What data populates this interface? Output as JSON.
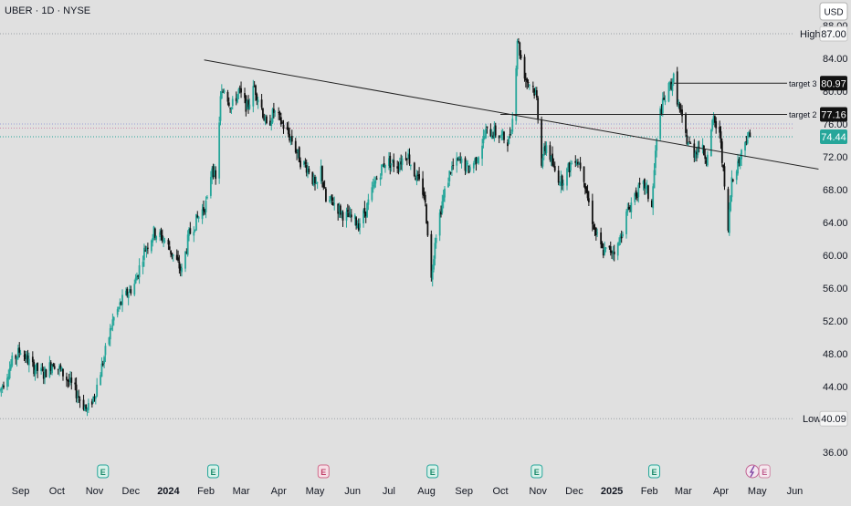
{
  "header": {
    "symbol": "UBER · 1D · NYSE",
    "currency": "USD"
  },
  "chart_data": {
    "type": "candlestick",
    "title": "UBER · 1D · NYSE",
    "ylim": [
      35,
      89
    ],
    "y_ticks": [
      36,
      40,
      44,
      48,
      52,
      56,
      60,
      64,
      68,
      72,
      76,
      80,
      84,
      88
    ],
    "x_ticks": [
      {
        "label": "Sep",
        "date": "2023-09-01",
        "bold": false
      },
      {
        "label": "Oct",
        "date": "2023-10-01",
        "bold": false
      },
      {
        "label": "Nov",
        "date": "2023-11-01",
        "bold": false
      },
      {
        "label": "Dec",
        "date": "2023-12-01",
        "bold": false
      },
      {
        "label": "2024",
        "date": "2024-01-01",
        "bold": true
      },
      {
        "label": "Feb",
        "date": "2024-02-01",
        "bold": false
      },
      {
        "label": "Mar",
        "date": "2024-03-01",
        "bold": false
      },
      {
        "label": "Apr",
        "date": "2024-04-01",
        "bold": false
      },
      {
        "label": "May",
        "date": "2024-05-01",
        "bold": false
      },
      {
        "label": "Jun",
        "date": "2024-06-01",
        "bold": false
      },
      {
        "label": "Jul",
        "date": "2024-07-01",
        "bold": false
      },
      {
        "label": "Aug",
        "date": "2024-08-01",
        "bold": false
      },
      {
        "label": "Sep",
        "date": "2024-09-01",
        "bold": false
      },
      {
        "label": "Oct",
        "date": "2024-10-01",
        "bold": false
      },
      {
        "label": "Nov",
        "date": "2024-11-01",
        "bold": false
      },
      {
        "label": "Dec",
        "date": "2024-12-01",
        "bold": false
      },
      {
        "label": "2025",
        "date": "2025-01-01",
        "bold": true
      },
      {
        "label": "Feb",
        "date": "2025-02-01",
        "bold": false
      },
      {
        "label": "Mar",
        "date": "2025-03-01",
        "bold": false
      },
      {
        "label": "Apr",
        "date": "2025-04-01",
        "bold": false
      },
      {
        "label": "May",
        "date": "2025-05-01",
        "bold": false
      },
      {
        "label": "Jun",
        "date": "2025-06-01",
        "bold": false
      }
    ],
    "price_path": [
      [
        "2023-08-15",
        43.5
      ],
      [
        "2023-08-25",
        47.0
      ],
      [
        "2023-09-01",
        48.5
      ],
      [
        "2023-09-10",
        46.5
      ],
      [
        "2023-09-20",
        45.5
      ],
      [
        "2023-09-28",
        47.0
      ],
      [
        "2023-10-08",
        45.2
      ],
      [
        "2023-10-16",
        43.5
      ],
      [
        "2023-10-26",
        41.0
      ],
      [
        "2023-11-01",
        43.0
      ],
      [
        "2023-11-08",
        47.0
      ],
      [
        "2023-11-16",
        52.0
      ],
      [
        "2023-11-24",
        54.5
      ],
      [
        "2023-12-04",
        56.5
      ],
      [
        "2023-12-12",
        60.5
      ],
      [
        "2023-12-20",
        62.8
      ],
      [
        "2023-12-28",
        62.0
      ],
      [
        "2024-01-05",
        60.0
      ],
      [
        "2024-01-12",
        58.0
      ],
      [
        "2024-01-18",
        62.5
      ],
      [
        "2024-01-25",
        64.5
      ],
      [
        "2024-02-02",
        66.5
      ],
      [
        "2024-02-06",
        71.0
      ],
      [
        "2024-02-09",
        69.0
      ],
      [
        "2024-02-13",
        79.0
      ],
      [
        "2024-02-16",
        80.5
      ],
      [
        "2024-02-22",
        78.0
      ],
      [
        "2024-02-28",
        80.0
      ],
      [
        "2024-03-06",
        78.0
      ],
      [
        "2024-03-12",
        80.5
      ],
      [
        "2024-03-18",
        78.0
      ],
      [
        "2024-03-22",
        75.5
      ],
      [
        "2024-03-28",
        77.5
      ],
      [
        "2024-04-04",
        76.0
      ],
      [
        "2024-04-12",
        74.0
      ],
      [
        "2024-04-19",
        71.5
      ],
      [
        "2024-04-26",
        70.5
      ],
      [
        "2024-05-02",
        68.0
      ],
      [
        "2024-05-06",
        70.5
      ],
      [
        "2024-05-10",
        66.5
      ],
      [
        "2024-05-16",
        66.5
      ],
      [
        "2024-05-24",
        65.0
      ],
      [
        "2024-05-31",
        64.5
      ],
      [
        "2024-06-06",
        63.8
      ],
      [
        "2024-06-12",
        65.5
      ],
      [
        "2024-06-20",
        69.0
      ],
      [
        "2024-06-28",
        71.5
      ],
      [
        "2024-07-08",
        71.0
      ],
      [
        "2024-07-16",
        72.5
      ],
      [
        "2024-07-22",
        70.0
      ],
      [
        "2024-07-30",
        67.5
      ],
      [
        "2024-08-02",
        63.0
      ],
      [
        "2024-08-05",
        57.0
      ],
      [
        "2024-08-08",
        62.0
      ],
      [
        "2024-08-14",
        66.5
      ],
      [
        "2024-08-21",
        70.5
      ],
      [
        "2024-08-28",
        71.5
      ],
      [
        "2024-09-05",
        70.5
      ],
      [
        "2024-09-12",
        72.0
      ],
      [
        "2024-09-19",
        75.0
      ],
      [
        "2024-09-26",
        75.0
      ],
      [
        "2024-10-01",
        74.5
      ],
      [
        "2024-10-08",
        74.0
      ],
      [
        "2024-10-12",
        77.5
      ],
      [
        "2024-10-15",
        86.5
      ],
      [
        "2024-10-18",
        84.0
      ],
      [
        "2024-10-22",
        81.5
      ],
      [
        "2024-10-28",
        80.5
      ],
      [
        "2024-10-31",
        79.0
      ],
      [
        "2024-11-04",
        71.5
      ],
      [
        "2024-11-08",
        73.5
      ],
      [
        "2024-11-14",
        70.5
      ],
      [
        "2024-11-20",
        69.0
      ],
      [
        "2024-11-26",
        70.5
      ],
      [
        "2024-12-02",
        72.0
      ],
      [
        "2024-12-08",
        70.5
      ],
      [
        "2024-12-12",
        67.0
      ],
      [
        "2024-12-18",
        63.0
      ],
      [
        "2024-12-24",
        60.5
      ],
      [
        "2024-12-30",
        60.5
      ],
      [
        "2025-01-06",
        61.0
      ],
      [
        "2025-01-12",
        64.5
      ],
      [
        "2025-01-20",
        67.5
      ],
      [
        "2025-01-28",
        68.5
      ],
      [
        "2025-02-03",
        66.0
      ],
      [
        "2025-02-06",
        72.5
      ],
      [
        "2025-02-10",
        77.5
      ],
      [
        "2025-02-16",
        80.0
      ],
      [
        "2025-02-21",
        81.5
      ],
      [
        "2025-02-26",
        77.5
      ],
      [
        "2025-03-04",
        74.0
      ],
      [
        "2025-03-10",
        72.5
      ],
      [
        "2025-03-14",
        73.5
      ],
      [
        "2025-03-20",
        72.0
      ],
      [
        "2025-03-26",
        76.5
      ],
      [
        "2025-04-01",
        74.0
      ],
      [
        "2025-04-04",
        68.0
      ],
      [
        "2025-04-07",
        63.0
      ],
      [
        "2025-04-10",
        69.5
      ],
      [
        "2025-04-16",
        71.5
      ],
      [
        "2025-04-22",
        74.5
      ],
      [
        "2025-04-25",
        74.44
      ]
    ],
    "price_lines": [
      {
        "name": "High",
        "value": 87.0,
        "color": "#9aa0a6",
        "style": "dotted"
      },
      {
        "name": "Low",
        "value": 40.09,
        "color": "#9aa0a6",
        "style": "dotted"
      },
      {
        "name": "last",
        "value": 74.44,
        "color": "#26a69a",
        "style": "dotted"
      }
    ],
    "extra_bands": [
      75.5,
      76.0
    ],
    "labels": {
      "high_label": "High",
      "high_value": "87.00",
      "low_label": "Low",
      "low_value": "40.09",
      "last_value": "74.44",
      "target2_label": "target 2",
      "target2_value": "77.16",
      "target3_label": "target 3",
      "target3_value": "80.97"
    },
    "targets": [
      {
        "name": "target 3",
        "value": 80.97,
        "from_date": "2025-02-21"
      },
      {
        "name": "target 2",
        "value": 77.16,
        "from_date": "2024-10-01"
      }
    ],
    "trendline": {
      "start": [
        "2024-02-01",
        83.8
      ],
      "end": [
        "2025-06-01",
        70.5
      ]
    },
    "event_markers": [
      {
        "label": "E",
        "date": "2023-11-08",
        "kind": "earnings"
      },
      {
        "label": "E",
        "date": "2024-02-07",
        "kind": "earnings"
      },
      {
        "label": "E",
        "date": "2024-05-08",
        "kind": "earnings-bad"
      },
      {
        "label": "E",
        "date": "2024-08-06",
        "kind": "earnings"
      },
      {
        "label": "E",
        "date": "2024-10-31",
        "kind": "earnings"
      },
      {
        "label": "E",
        "date": "2025-02-05",
        "kind": "earnings"
      },
      {
        "label": "",
        "date": "2025-04-27",
        "kind": "dividend"
      },
      {
        "label": "E",
        "date": "2025-05-07",
        "kind": "earnings-upcoming"
      }
    ],
    "colors": {
      "up": "#26a69a",
      "down": "#111111",
      "background": "#e0e0e0"
    }
  }
}
